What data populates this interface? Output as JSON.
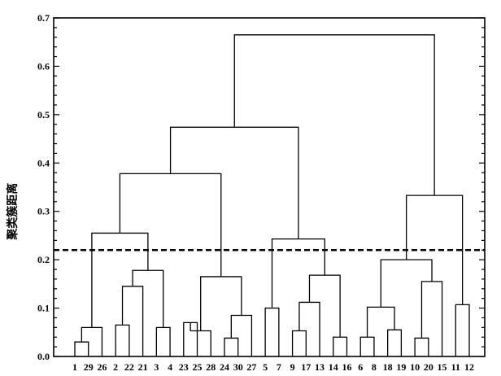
{
  "chart_data": {
    "type": "dendrogram",
    "ylabel": "聚类簇距离",
    "ylim": [
      0,
      0.7
    ],
    "yticks": [
      "0.0",
      "0.1",
      "0.2",
      "0.3",
      "0.4",
      "0.5",
      "0.6",
      "0.7"
    ],
    "yminor_step": 0.02,
    "threshold": 0.22,
    "leaves": [
      "1",
      "29",
      "26",
      "2",
      "22",
      "21",
      "3",
      "4",
      "23",
      "25",
      "28",
      "24",
      "30",
      "27",
      "5",
      "7",
      "9",
      "17",
      "13",
      "14",
      "16",
      "6",
      "8",
      "18",
      "19",
      "10",
      "20",
      "15",
      "11",
      "12"
    ],
    "merges": [
      {
        "a": "L:1",
        "b": "L:29",
        "height": 0.03
      },
      {
        "a": "M:0",
        "b": "L:26",
        "height": 0.06
      },
      {
        "a": "L:2",
        "b": "L:22",
        "height": 0.065
      },
      {
        "a": "M:2",
        "b": "L:21",
        "height": 0.145
      },
      {
        "a": "L:3",
        "b": "L:4",
        "height": 0.06
      },
      {
        "a": "M:3",
        "b": "M:4",
        "height": 0.178
      },
      {
        "a": "M:1",
        "b": "M:5",
        "height": 0.255
      },
      {
        "a": "L:23",
        "b": "L:25",
        "height": 0.07
      },
      {
        "a": "M:7",
        "b": "L:28",
        "height": 0.053
      },
      {
        "a": "L:24",
        "b": "L:30",
        "height": 0.038
      },
      {
        "a": "M:9",
        "b": "L:27",
        "height": 0.085
      },
      {
        "a": "M:8",
        "b": "M:10",
        "height": 0.165
      },
      {
        "a": "M:6",
        "b": "M:11",
        "height": 0.378
      },
      {
        "a": "L:5",
        "b": "L:7",
        "height": 0.1
      },
      {
        "a": "L:9",
        "b": "L:17",
        "height": 0.053
      },
      {
        "a": "M:14",
        "b": "L:13",
        "height": 0.112
      },
      {
        "a": "L:14",
        "b": "L:16",
        "height": 0.04
      },
      {
        "a": "M:15",
        "b": "M:16",
        "height": 0.168
      },
      {
        "a": "M:13",
        "b": "M:17",
        "height": 0.243
      },
      {
        "a": "M:12",
        "b": "M:18",
        "height": 0.474
      },
      {
        "a": "L:6",
        "b": "L:8",
        "height": 0.04
      },
      {
        "a": "L:18",
        "b": "L:19",
        "height": 0.055
      },
      {
        "a": "M:20",
        "b": "M:21",
        "height": 0.102
      },
      {
        "a": "L:10",
        "b": "L:20",
        "height": 0.038
      },
      {
        "a": "M:23",
        "b": "L:15",
        "height": 0.155
      },
      {
        "a": "M:22",
        "b": "M:24",
        "height": 0.2
      },
      {
        "a": "L:11",
        "b": "L:12",
        "height": 0.107
      },
      {
        "a": "M:25",
        "b": "M:26",
        "height": 0.333
      },
      {
        "a": "M:19",
        "b": "M:27",
        "height": 0.665
      }
    ]
  }
}
